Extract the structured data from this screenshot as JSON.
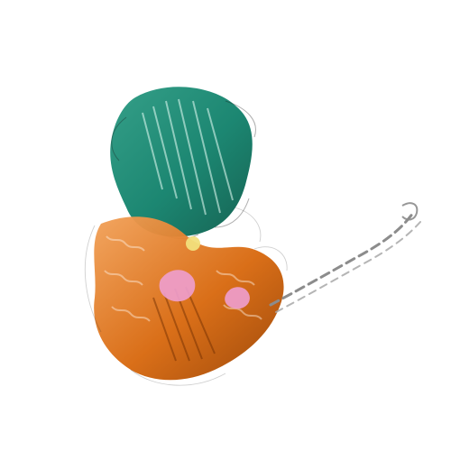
{
  "image": {
    "kind": "protein ribbon structure",
    "background": "#ffffff"
  },
  "colors": {
    "chain_a": "#10806a",
    "chain_a_dark": "#0a5a49",
    "chain_b": "#d8690f",
    "chain_b_dark": "#9a4200",
    "chain_b_light": "#f2a25a",
    "ligand_pink": "#ee9fcf",
    "ligand_yellow": "#f1df7c",
    "coil": "#9a9a9a"
  }
}
